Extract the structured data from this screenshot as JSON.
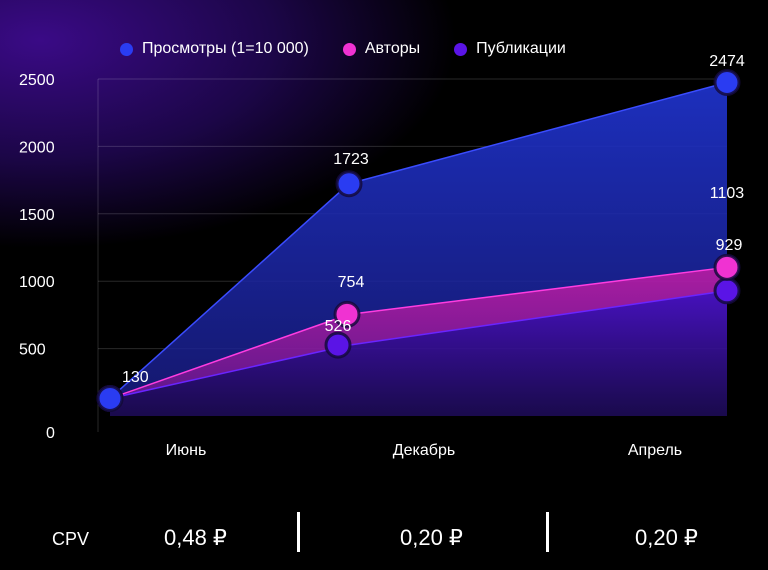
{
  "legend": [
    {
      "label": "Просмотры (1=10 000)",
      "color": "#2a3cf2"
    },
    {
      "label": "Авторы",
      "color": "#f032d2"
    },
    {
      "label": "Публикации",
      "color": "#5a14e6"
    }
  ],
  "chart_data": {
    "type": "area",
    "categories": [
      "Июнь",
      "Декабрь",
      "Апрель"
    ],
    "series": [
      {
        "name": "Просмотры (1=10 000)",
        "values": [
          130,
          1723,
          2474
        ],
        "labels": [
          "130",
          "1723",
          "2474"
        ],
        "color": "#2a3cf2"
      },
      {
        "name": "Авторы",
        "values": [
          130,
          754,
          1103
        ],
        "labels": [
          "",
          "754",
          "1103"
        ],
        "color": "#f032d2"
      },
      {
        "name": "Публикации",
        "values": [
          130,
          526,
          929
        ],
        "labels": [
          "",
          "526",
          "929"
        ],
        "color": "#5a14e6"
      }
    ],
    "yticks": [
      0,
      500,
      1000,
      1500,
      2000,
      2500
    ],
    "ylim": [
      0,
      2500
    ],
    "grid": true,
    "legend_position": "top"
  },
  "footer": {
    "label": "CPV",
    "values": [
      "0,48 ₽",
      "0,20 ₽",
      "0,20 ₽"
    ]
  }
}
